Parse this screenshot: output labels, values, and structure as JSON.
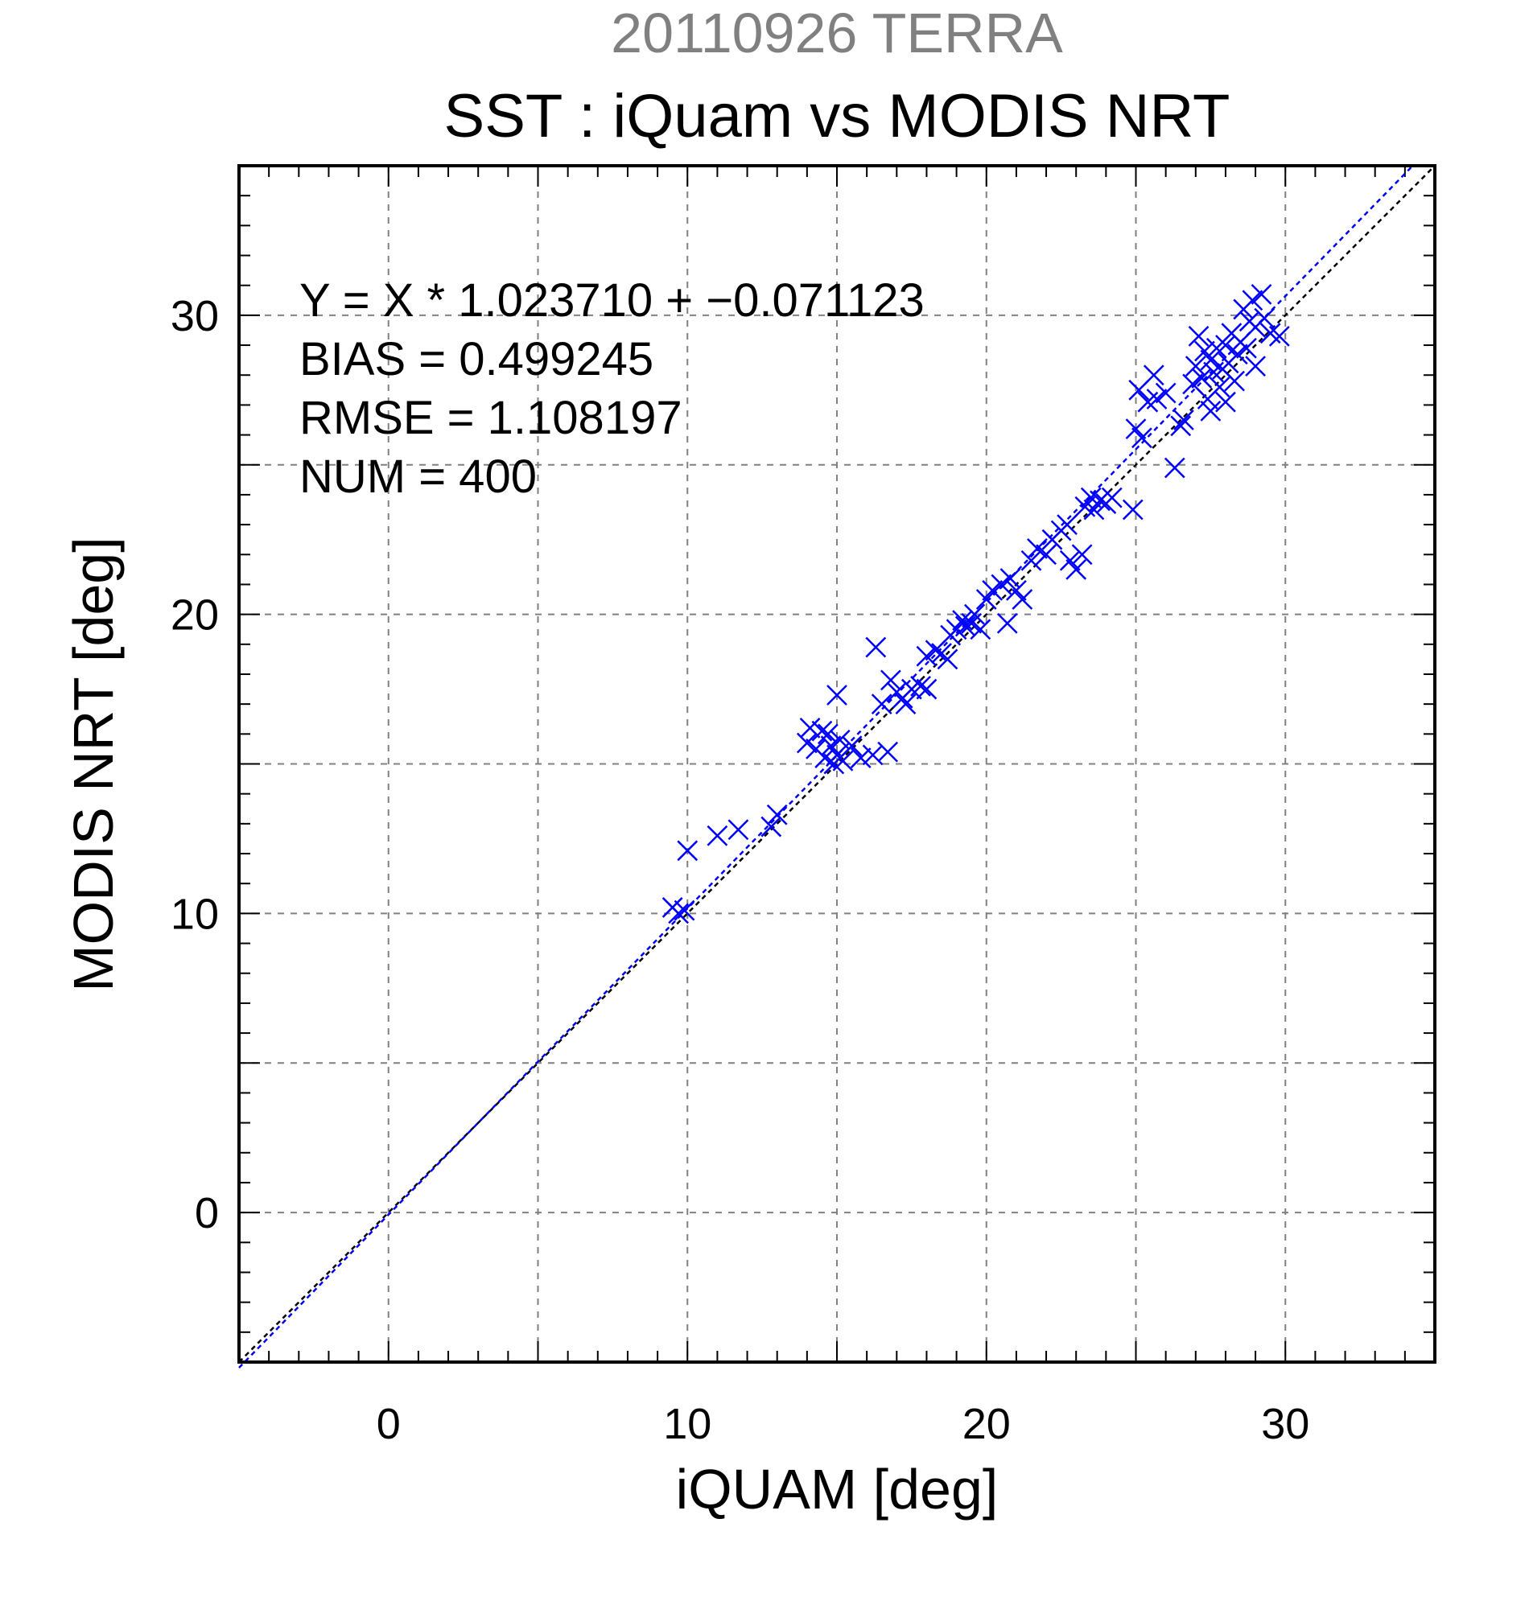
{
  "chart_data": {
    "type": "scatter",
    "suptitle": "20110926 TERRA",
    "title": "SST : iQuam vs MODIS NRT",
    "xlabel": "iQUAM [deg]",
    "ylabel": "MODIS NRT [deg]",
    "xlim": [
      -5,
      35
    ],
    "ylim": [
      -5,
      35
    ],
    "xticks": [
      0,
      10,
      20,
      30
    ],
    "yticks": [
      0,
      10,
      20,
      30
    ],
    "grid": true,
    "grid_step": 5,
    "minor_tick_step": 1,
    "stats": [
      "Y = X * 1.023710 + −0.071123",
      "BIAS = 0.499245",
      "RMSE = 1.108197",
      "NUM = 400"
    ],
    "fit": {
      "slope": 1.02371,
      "intercept": -0.071123,
      "color": "#0000ff"
    },
    "identity_line": {
      "color": "#000000"
    },
    "marker": "x",
    "marker_color": "#0000ff",
    "points": [
      [
        9.5,
        10.2
      ],
      [
        9.7,
        10.0
      ],
      [
        9.9,
        10.1
      ],
      [
        10.0,
        12.1
      ],
      [
        11.0,
        12.6
      ],
      [
        11.7,
        12.8
      ],
      [
        12.8,
        12.9
      ],
      [
        13.0,
        13.3
      ],
      [
        14.0,
        15.7
      ],
      [
        14.1,
        16.2
      ],
      [
        14.3,
        15.5
      ],
      [
        14.5,
        16.1
      ],
      [
        14.6,
        15.2
      ],
      [
        14.7,
        16.0
      ],
      [
        14.8,
        15.6
      ],
      [
        14.9,
        15.0
      ],
      [
        15.0,
        15.3
      ],
      [
        15.0,
        17.3
      ],
      [
        15.1,
        15.8
      ],
      [
        15.2,
        15.1
      ],
      [
        15.5,
        15.6
      ],
      [
        15.8,
        15.2
      ],
      [
        16.2,
        15.3
      ],
      [
        16.3,
        18.9
      ],
      [
        16.5,
        17.0
      ],
      [
        16.7,
        15.4
      ],
      [
        16.8,
        17.8
      ],
      [
        17.0,
        17.4
      ],
      [
        17.2,
        17.2
      ],
      [
        17.3,
        17.0
      ],
      [
        17.5,
        17.5
      ],
      [
        17.8,
        17.6
      ],
      [
        18.0,
        17.5
      ],
      [
        18.0,
        18.6
      ],
      [
        18.3,
        18.8
      ],
      [
        18.5,
        18.7
      ],
      [
        18.7,
        18.5
      ],
      [
        18.8,
        19.3
      ],
      [
        19.0,
        19.5
      ],
      [
        19.2,
        19.8
      ],
      [
        19.3,
        19.6
      ],
      [
        19.5,
        19.7
      ],
      [
        19.6,
        20.0
      ],
      [
        19.8,
        19.5
      ],
      [
        20.0,
        20.5
      ],
      [
        20.2,
        20.8
      ],
      [
        20.5,
        21.0
      ],
      [
        20.7,
        19.7
      ],
      [
        20.8,
        21.2
      ],
      [
        21.0,
        20.8
      ],
      [
        21.2,
        20.5
      ],
      [
        21.5,
        21.8
      ],
      [
        21.7,
        22.2
      ],
      [
        22.0,
        22.0
      ],
      [
        22.2,
        22.5
      ],
      [
        22.5,
        22.8
      ],
      [
        22.7,
        23.0
      ],
      [
        22.8,
        21.8
      ],
      [
        23.0,
        21.5
      ],
      [
        23.2,
        22.0
      ],
      [
        23.3,
        23.6
      ],
      [
        23.5,
        23.9
      ],
      [
        23.6,
        23.5
      ],
      [
        23.8,
        23.8
      ],
      [
        24.0,
        23.7
      ],
      [
        24.2,
        23.9
      ],
      [
        24.9,
        23.5
      ],
      [
        25.0,
        26.2
      ],
      [
        25.1,
        27.5
      ],
      [
        25.2,
        25.9
      ],
      [
        25.4,
        27.1
      ],
      [
        25.6,
        28.0
      ],
      [
        25.7,
        27.2
      ],
      [
        26.0,
        27.4
      ],
      [
        26.3,
        24.9
      ],
      [
        26.5,
        26.3
      ],
      [
        26.6,
        26.5
      ],
      [
        26.9,
        27.7
      ],
      [
        27.0,
        28.3
      ],
      [
        27.1,
        29.3
      ],
      [
        27.2,
        27.9
      ],
      [
        27.3,
        28.8
      ],
      [
        27.4,
        27.2
      ],
      [
        27.5,
        28.5
      ],
      [
        27.5,
        26.8
      ],
      [
        27.6,
        28.1
      ],
      [
        27.7,
        28.9
      ],
      [
        27.8,
        27.6
      ],
      [
        27.9,
        28.2
      ],
      [
        28.0,
        29.0
      ],
      [
        28.0,
        27.1
      ],
      [
        28.1,
        28.4
      ],
      [
        28.2,
        29.4
      ],
      [
        28.3,
        27.8
      ],
      [
        28.4,
        28.7
      ],
      [
        28.5,
        29.1
      ],
      [
        28.6,
        30.2
      ],
      [
        28.7,
        28.9
      ],
      [
        28.8,
        29.8
      ],
      [
        28.9,
        30.5
      ],
      [
        29.0,
        29.6
      ],
      [
        29.0,
        28.3
      ],
      [
        29.2,
        30.7
      ],
      [
        29.3,
        29.9
      ],
      [
        29.5,
        29.4
      ],
      [
        29.8,
        29.3
      ]
    ]
  }
}
